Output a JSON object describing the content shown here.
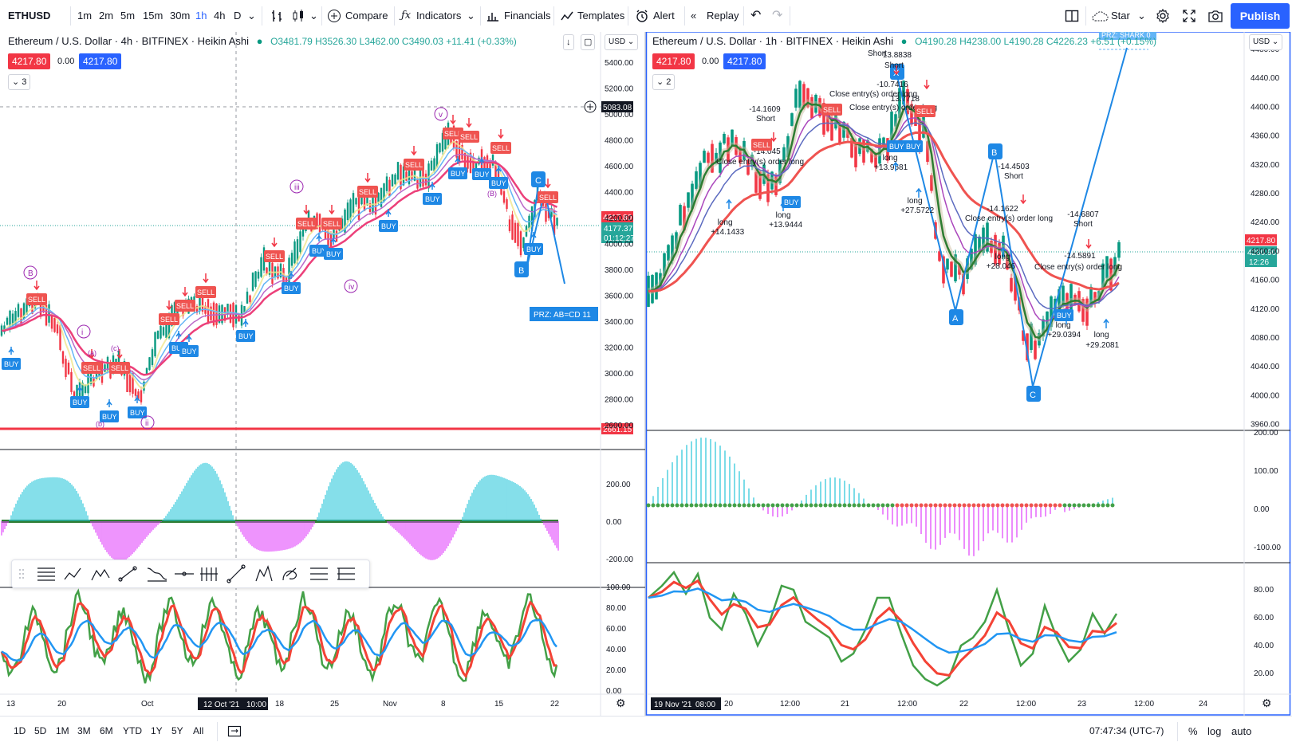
{
  "toolbar": {
    "symbol": "ETHUSD",
    "intervals": [
      "1m",
      "2m",
      "5m",
      "15m",
      "30m",
      "1h",
      "4h",
      "D"
    ],
    "active_interval": "1h",
    "compare": "Compare",
    "indicators": "Indicators",
    "financials": "Financials",
    "templates": "Templates",
    "alert": "Alert",
    "replay": "Replay",
    "star": "Star",
    "publish": "Publish"
  },
  "left_chart": {
    "title": "Ethereum / U.S. Dollar · 4h · BITFINEX · Heikin Ashi",
    "ohlc": "O3481.79 H3526.30 L3462.00 C3490.03 +11.41 (+0.33%)",
    "bid": "4217.80",
    "spread": "0.00",
    "ask": "4217.80",
    "collapse": "3",
    "currency": "USD",
    "price_ticks": [
      "5400.00",
      "5200.00",
      "5000.00",
      "4800.00",
      "4600.00",
      "4400.00",
      "4200.00",
      "4000.00",
      "3800.00",
      "3600.00",
      "3400.00",
      "3200.00",
      "3000.00",
      "2800.00",
      "2600.00"
    ],
    "crosshair_price": "5083.08",
    "last_price": "4217.80",
    "current_price": "4177.37",
    "countdown": "01:12:27",
    "support_price": "2661.15",
    "prz_label": "PRZ: AB=CD 11",
    "osc_ticks": [
      "200.00",
      "0.00",
      "-200.00"
    ],
    "rsi_ticks": [
      "100.00",
      "80.00",
      "60.00",
      "40.00",
      "20.00",
      "0.00"
    ],
    "time_ticks": [
      "13",
      "20",
      "Oct",
      "18",
      "25",
      "Nov",
      "8",
      "15",
      "22"
    ],
    "crosshair_time": "12 Oct '21",
    "crosshair_clock": "10:00",
    "labels": {
      "buy": "BUY",
      "sell": "SELL",
      "b_point": "B",
      "c_point": "C",
      "w_i": "i",
      "w_ii": "ii",
      "w_iii": "iii",
      "w_iv": "iv",
      "w_v": "v",
      "w_B": "B",
      "w_a": "(a)",
      "w_c": "(c)",
      "w_b": "(b)",
      "w_B2": "(B)"
    }
  },
  "right_chart": {
    "title": "Ethereum / U.S. Dollar · 1h · BITFINEX · Heikin Ashi",
    "ohlc": "O4190.28 H4238.00 L4190.28 C4226.23 +6.51 (+0.15%)",
    "bid": "4217.80",
    "spread": "0.00",
    "ask": "4217.80",
    "collapse": "2",
    "currency": "USD",
    "price_ticks": [
      "4480.00",
      "4440.00",
      "4400.00",
      "4360.00",
      "4320.00",
      "4280.00",
      "4240.00",
      "4200.00",
      "4160.00",
      "4120.00",
      "4080.00",
      "4040.00",
      "4000.00",
      "3960.00"
    ],
    "last_price": "4217.80",
    "current_price": "4200.90",
    "countdown": "12:26",
    "prz_label": "PRZ: SHARK 0",
    "osc_ticks": [
      "200.00",
      "100.00",
      "0.00",
      "-100.00"
    ],
    "rsi_ticks": [
      "80.00",
      "60.00",
      "40.00",
      "20.00"
    ],
    "time_ticks": [
      "20",
      "12:00",
      "21",
      "12:00",
      "22",
      "12:00",
      "23",
      "12:00",
      "24"
    ],
    "crosshair_time": "19 Nov '21",
    "crosshair_clock": "08:00",
    "points": {
      "x": "X",
      "a": "A",
      "b": "B",
      "c": "C"
    },
    "annotations": [
      {
        "text": "13.8838",
        "x": 1125,
        "y": 72
      },
      {
        "text": "Short",
        "x": 1122,
        "y": 85
      },
      {
        "text": "Short",
        "x": 1101,
        "y": 70
      },
      {
        "text": "-10.7416",
        "x": 1120,
        "y": 109
      },
      {
        "text": "Close entry(s) order long",
        "x": 1105,
        "y": 121
      },
      {
        "text": "13.7718",
        "x": 1135,
        "y": 127
      },
      {
        "text": "Close entry(s) order long",
        "x": 1130,
        "y": 138
      },
      {
        "text": "-14.1609",
        "x": 960,
        "y": 140
      },
      {
        "text": "Short",
        "x": 961,
        "y": 152
      },
      {
        "text": "-14.045",
        "x": 963,
        "y": 193
      },
      {
        "text": "Close entry(s) order long",
        "x": 963,
        "y": 206
      },
      {
        "text": "long",
        "x": 1117,
        "y": 201
      },
      {
        "text": "+13.9581",
        "x": 1117,
        "y": 213
      },
      {
        "text": "-14.4503",
        "x": 1272,
        "y": 212
      },
      {
        "text": "Short",
        "x": 1272,
        "y": 224
      },
      {
        "text": "long",
        "x": 1148,
        "y": 255
      },
      {
        "text": "+27.5722",
        "x": 1150,
        "y": 267
      },
      {
        "text": "-14.1622",
        "x": 1258,
        "y": 265
      },
      {
        "text": "long",
        "x": 983,
        "y": 273
      },
      {
        "text": "+13.9444",
        "x": 985,
        "y": 285
      },
      {
        "text": "-14.6807",
        "x": 1359,
        "y": 272
      },
      {
        "text": "Close entry(s) order long",
        "x": 1275,
        "y": 277
      },
      {
        "text": "Short",
        "x": 1359,
        "y": 284
      },
      {
        "text": "long",
        "x": 910,
        "y": 282
      },
      {
        "text": "+14.1433",
        "x": 912,
        "y": 294
      },
      {
        "text": "-14.5891",
        "x": 1355,
        "y": 324
      },
      {
        "text": "long",
        "x": 1258,
        "y": 325
      },
      {
        "text": "+28.046",
        "x": 1255,
        "y": 337
      },
      {
        "text": "Close entry(s) order long",
        "x": 1362,
        "y": 338
      },
      {
        "text": "long",
        "x": 1334,
        "y": 411
      },
      {
        "text": "+29.0394",
        "x": 1334,
        "y": 423
      },
      {
        "text": "long",
        "x": 1382,
        "y": 423
      },
      {
        "text": "+29.2081",
        "x": 1382,
        "y": 436
      }
    ],
    "labels": {
      "buy": "BUY",
      "sell": "SELL"
    }
  },
  "bottom": {
    "ranges": [
      "1D",
      "5D",
      "1M",
      "3M",
      "6M",
      "YTD",
      "1Y",
      "5Y",
      "All"
    ],
    "clock": "07:47:34 (UTC-7)",
    "percent": "%",
    "log": "log",
    "auto": "auto"
  },
  "colors": {
    "accent": "#2962ff",
    "up": "#089981",
    "down": "#f23645",
    "buy": "#1e88e5",
    "sell": "#ef5350",
    "rsi_green": "#43a047",
    "rsi_red": "#f44336",
    "rsi_blue": "#2196f3"
  }
}
